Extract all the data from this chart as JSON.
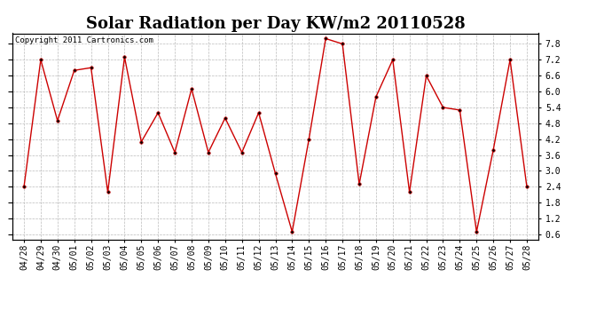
{
  "title": "Solar Radiation per Day KW/m2 20110528",
  "copyright": "Copyright 2011 Cartronics.com",
  "dates": [
    "04/28",
    "04/29",
    "04/30",
    "05/01",
    "05/02",
    "05/03",
    "05/04",
    "05/05",
    "05/06",
    "05/07",
    "05/08",
    "05/09",
    "05/10",
    "05/11",
    "05/12",
    "05/13",
    "05/14",
    "05/15",
    "05/16",
    "05/17",
    "05/18",
    "05/19",
    "05/20",
    "05/21",
    "05/22",
    "05/23",
    "05/24",
    "05/25",
    "05/26",
    "05/27",
    "05/28"
  ],
  "values": [
    2.4,
    7.2,
    4.9,
    6.8,
    6.9,
    2.2,
    7.3,
    4.1,
    5.2,
    3.7,
    6.1,
    3.7,
    5.0,
    3.7,
    5.2,
    2.9,
    0.7,
    4.2,
    8.0,
    7.8,
    2.5,
    5.8,
    7.2,
    2.2,
    6.6,
    5.4,
    5.3,
    0.7,
    3.8,
    7.2,
    2.4
  ],
  "line_color": "#cc0000",
  "marker": "o",
  "marker_size": 2.5,
  "marker_facecolor": "#000000",
  "marker_edgecolor": "#cc0000",
  "bg_color": "#ffffff",
  "plot_bg_color": "#ffffff",
  "grid_color": "#bbbbbb",
  "grid_style": "--",
  "ylim": [
    0.4,
    8.2
  ],
  "yticks": [
    0.6,
    1.2,
    1.8,
    2.4,
    3.0,
    3.6,
    4.2,
    4.8,
    5.4,
    6.0,
    6.6,
    7.2,
    7.8
  ],
  "title_fontsize": 13,
  "tick_fontsize": 7,
  "copyright_fontsize": 6.5
}
